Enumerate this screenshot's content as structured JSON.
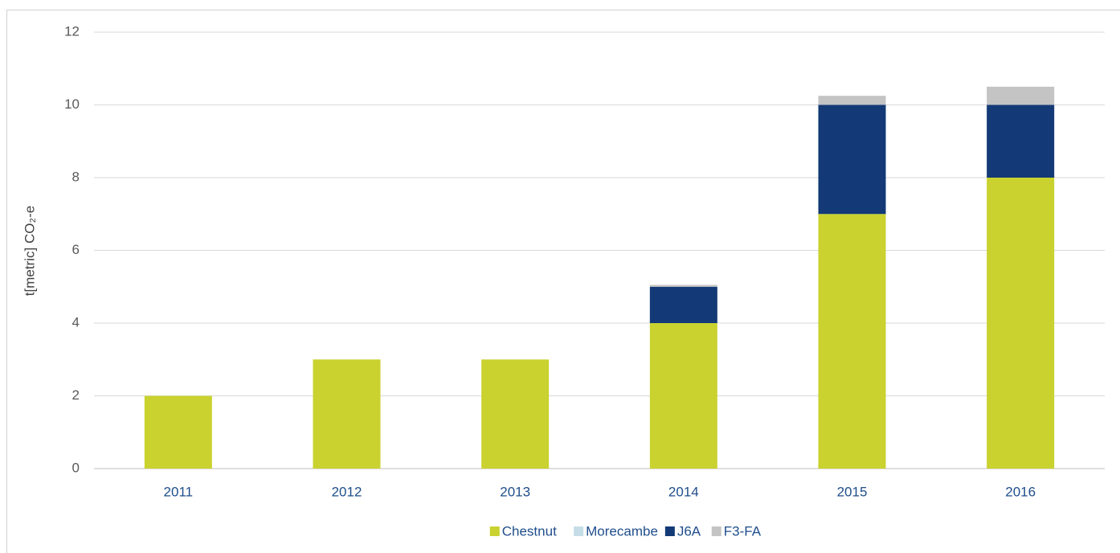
{
  "chart_data": {
    "type": "stacked_bar",
    "y_label": "t[metric] CO₂-e",
    "categories": [
      "2011",
      "2012",
      "2013",
      "2014",
      "2015",
      "2016"
    ],
    "series": [
      {
        "name": "Chestnut",
        "color": "#c9d22f",
        "values": [
          2,
          3,
          3,
          4,
          7,
          8
        ]
      },
      {
        "name": "Morecambe",
        "color": "#c5dde6",
        "values": [
          0,
          0,
          0,
          0,
          0,
          0
        ]
      },
      {
        "name": "J6A",
        "color": "#133a77",
        "values": [
          0,
          0,
          0,
          1,
          3,
          2
        ]
      },
      {
        "name": "F3-FA",
        "color": "#c4c4c4",
        "values": [
          0,
          0,
          0,
          0.05,
          0.25,
          0.5
        ]
      }
    ],
    "ylim": [
      0,
      12
    ],
    "yticks": [
      0,
      2,
      4,
      6,
      8,
      10,
      12
    ],
    "grid": true,
    "legend": "bottom"
  }
}
